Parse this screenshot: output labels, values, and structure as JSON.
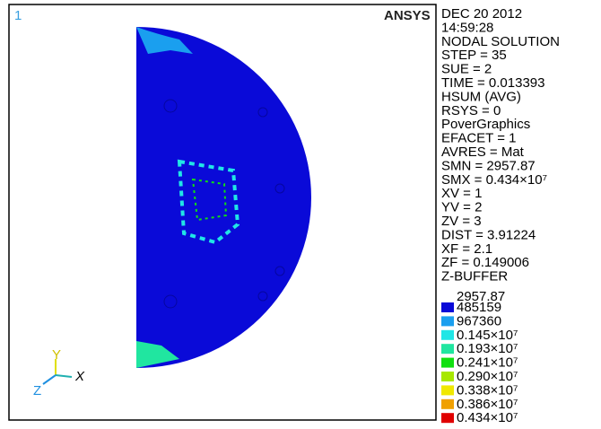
{
  "viewport": {
    "window_number": "1",
    "logo": "ANSYS"
  },
  "info_lines": [
    "DEC 20 2012",
    "14:59:28",
    "NODAL SOLUTION",
    "STEP = 35",
    "SUE = 2",
    "TIME = 0.013393",
    "HSUM  (AVG)",
    "RSYS = 0",
    "PoverGraphics",
    "EFACET = 1",
    "AVRES = Mat",
    "SMN = 2957.87",
    "SMX = 0.434×10⁷",
    "XV = 1",
    "YV = 2",
    "ZV = 3",
    "DIST = 3.91224",
    "XF = 2.1",
    "ZF = 0.149006",
    "Z-BUFFER"
  ],
  "legend": {
    "min_label": "2957.87",
    "items": [
      {
        "label": "485159",
        "color": "#0a0ad8"
      },
      {
        "label": "967360",
        "color": "#1a9fef"
      },
      {
        "label": "0.145×10⁷",
        "color": "#20e6e6"
      },
      {
        "label": "0.193×10⁷",
        "color": "#20e6a0"
      },
      {
        "label": "0.241×10⁷",
        "color": "#10e010"
      },
      {
        "label": "0.290×10⁷",
        "color": "#a8e800"
      },
      {
        "label": "0.338×10⁷",
        "color": "#f0e800"
      },
      {
        "label": "0.386×10⁷",
        "color": "#f0a000"
      },
      {
        "label": "0.434×10⁷",
        "color": "#e00000"
      }
    ]
  },
  "triad": {
    "x": "X",
    "y": "Y",
    "z": "Z"
  }
}
